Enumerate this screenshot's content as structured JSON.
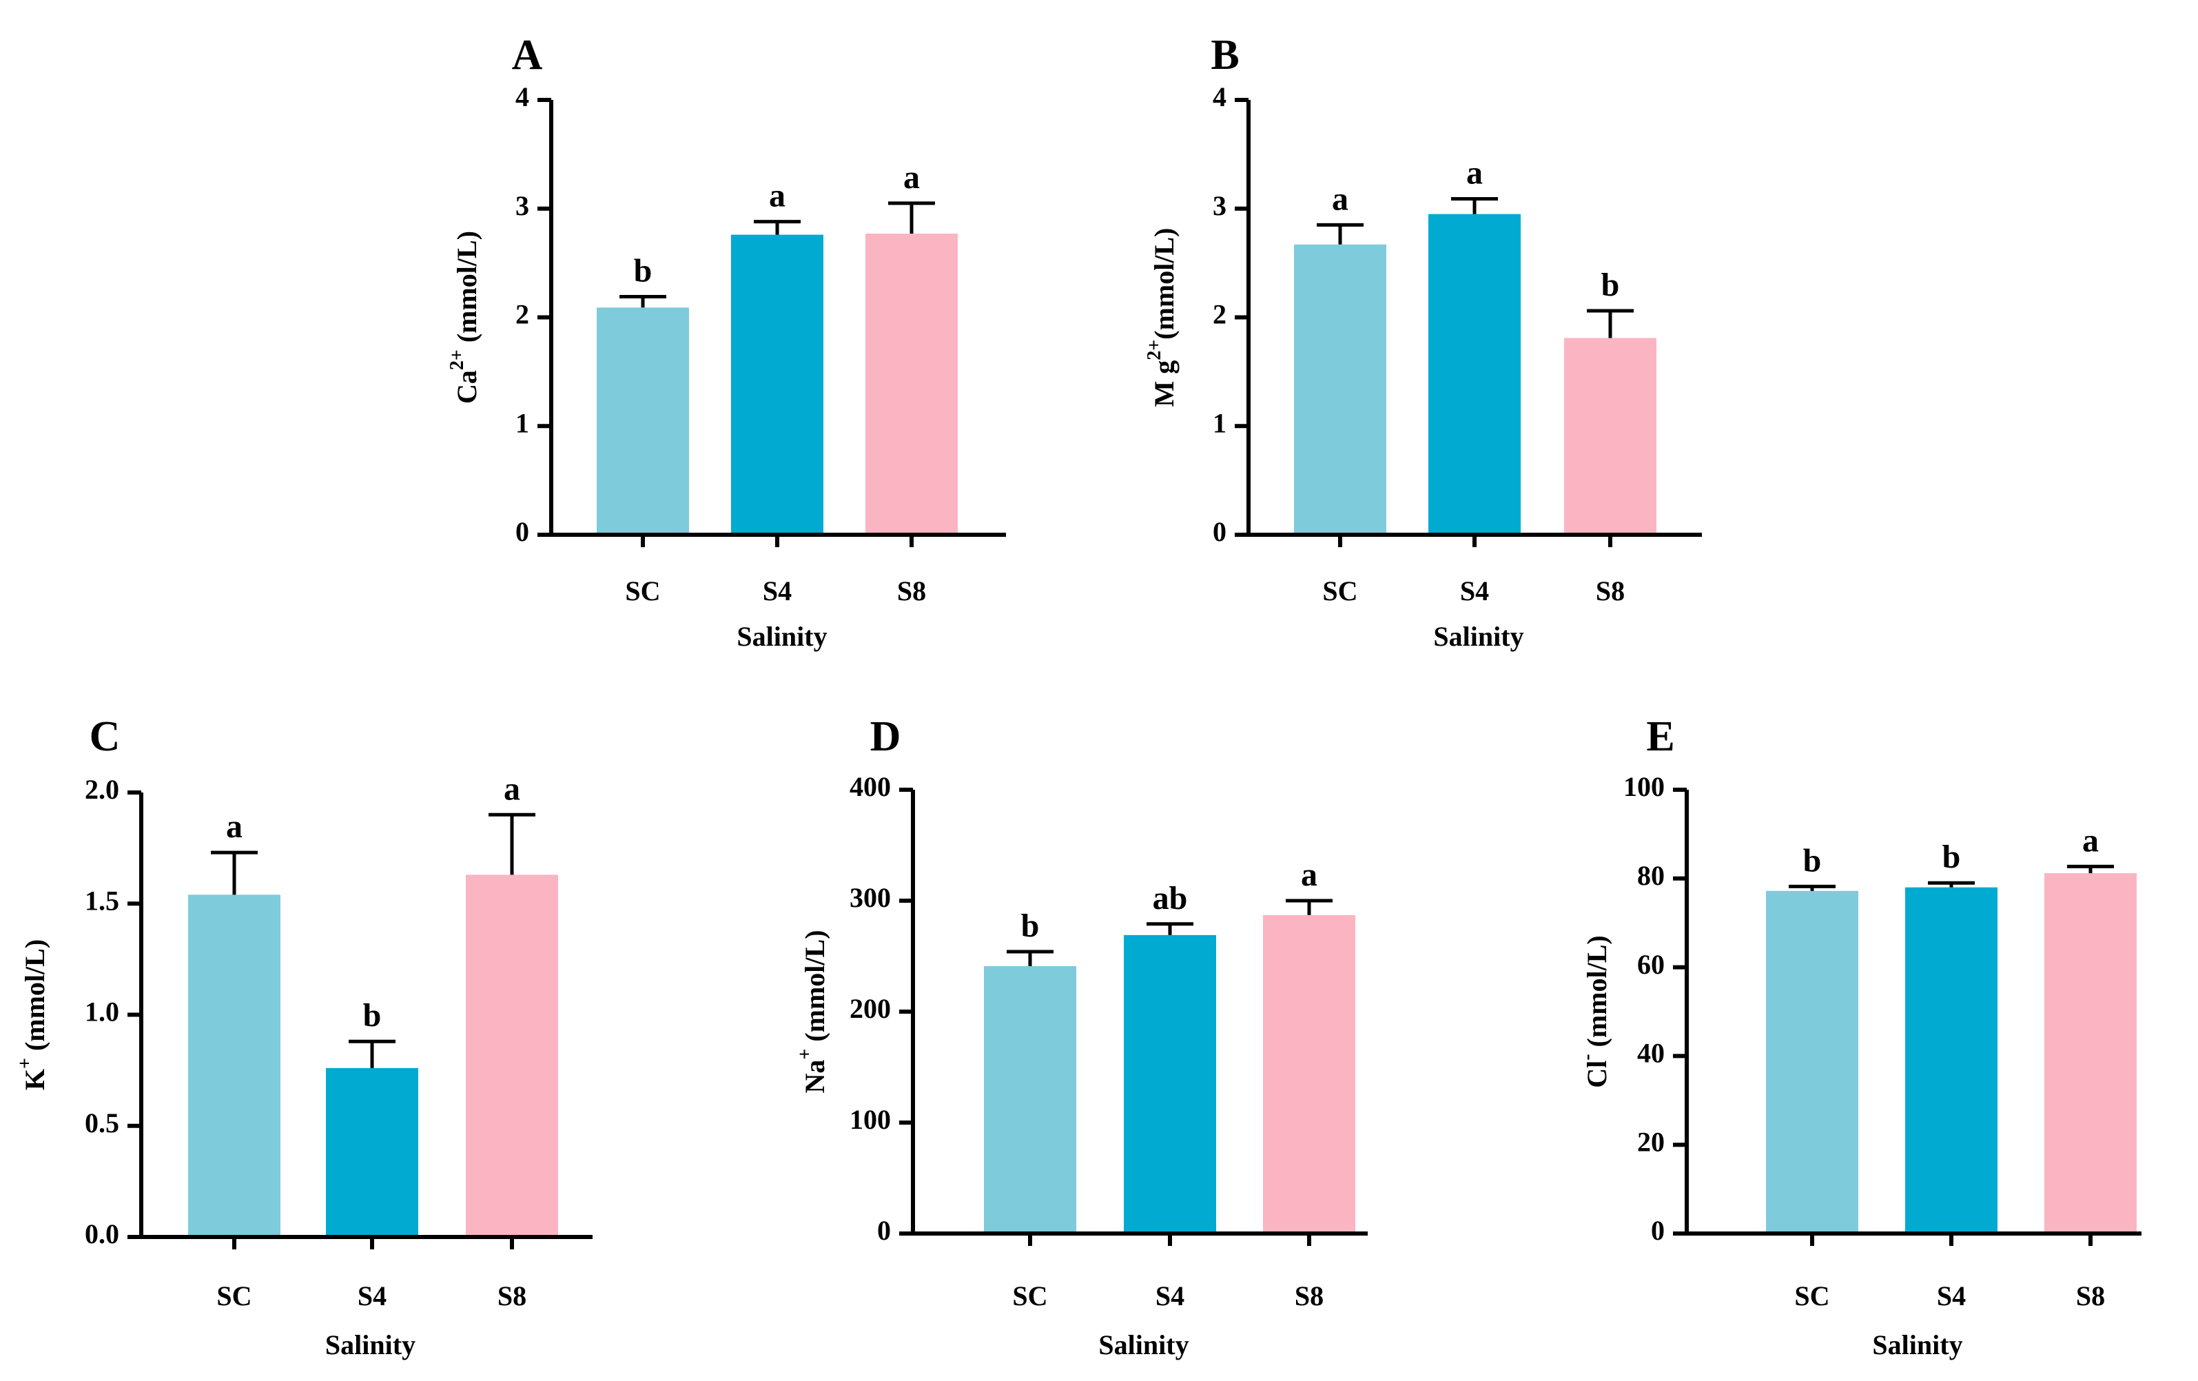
{
  "chart_data": [
    {
      "type": "bar",
      "panel": "A",
      "categories": [
        "SC",
        "S4",
        "S8"
      ],
      "values": [
        2.09,
        2.76,
        2.77
      ],
      "errors": [
        0.1,
        0.12,
        0.28
      ],
      "significance": [
        "b",
        "a",
        "a"
      ],
      "colors": [
        "#7ecbdc",
        "#00aad0",
        "#fbb5c2"
      ],
      "xlabel": "Salinity",
      "ylabel": {
        "base": "Ca",
        "sup": "2+",
        "unit": " (mmol/L)"
      },
      "ylim": [
        0,
        4
      ],
      "yticks": [
        0,
        1,
        2,
        3,
        4
      ],
      "ytick_labels": [
        "0",
        "1",
        "2",
        "3",
        "4"
      ]
    },
    {
      "type": "bar",
      "panel": "B",
      "categories": [
        "SC",
        "S4",
        "S8"
      ],
      "values": [
        2.67,
        2.95,
        1.81
      ],
      "errors": [
        0.18,
        0.14,
        0.25
      ],
      "significance": [
        "a",
        "a",
        "b"
      ],
      "colors": [
        "#7ecbdc",
        "#00aad0",
        "#fbb5c2"
      ],
      "xlabel": "Salinity",
      "ylabel": {
        "base": "M g",
        "sup": "2+",
        "unit": "(mmol/L)"
      },
      "ylim": [
        0,
        4
      ],
      "yticks": [
        0,
        1,
        2,
        3,
        4
      ],
      "ytick_labels": [
        "0",
        "1",
        "2",
        "3",
        "4"
      ]
    },
    {
      "type": "bar",
      "panel": "C",
      "categories": [
        "SC",
        "S4",
        "S8"
      ],
      "values": [
        1.54,
        0.76,
        1.63
      ],
      "errors": [
        0.19,
        0.12,
        0.27
      ],
      "significance": [
        "a",
        "b",
        "a"
      ],
      "colors": [
        "#7ecbdc",
        "#00aad0",
        "#fbb5c2"
      ],
      "xlabel": "Salinity",
      "ylabel": {
        "base": "K",
        "sup": "+",
        "unit": " (mmol/L)"
      },
      "ylim": [
        0,
        2
      ],
      "yticks": [
        0,
        0.5,
        1,
        1.5,
        2
      ],
      "ytick_labels": [
        "0.0",
        "0.5",
        "1.0",
        "1.5",
        "2.0"
      ]
    },
    {
      "type": "bar",
      "panel": "D",
      "categories": [
        "SC",
        "S4",
        "S8"
      ],
      "values": [
        241,
        269,
        287
      ],
      "errors": [
        13,
        10,
        13
      ],
      "significance": [
        "b",
        "ab",
        "a"
      ],
      "colors": [
        "#7ecbdc",
        "#00aad0",
        "#fbb5c2"
      ],
      "xlabel": "Salinity",
      "ylabel": {
        "base": "Na",
        "sup": "+",
        "unit": " (mmol/L)"
      },
      "ylim": [
        0,
        400
      ],
      "yticks": [
        0,
        100,
        200,
        300,
        400
      ],
      "ytick_labels": [
        "0",
        "100",
        "200",
        "300",
        "400"
      ]
    },
    {
      "type": "bar",
      "panel": "E",
      "categories": [
        "SC",
        "S4",
        "S8"
      ],
      "values": [
        77.2,
        78.0,
        81.2
      ],
      "errors": [
        1.0,
        1.0,
        1.5
      ],
      "significance": [
        "b",
        "b",
        "a"
      ],
      "colors": [
        "#7ecbdc",
        "#00aad0",
        "#fbb5c2"
      ],
      "xlabel": "Salinity",
      "ylabel": {
        "base": "Cl",
        "sup": "-",
        "unit": " (mmol/L)"
      },
      "ylim": [
        0,
        100
      ],
      "yticks": [
        0,
        20,
        40,
        60,
        80,
        100
      ],
      "ytick_labels": [
        "0",
        "20",
        "40",
        "60",
        "80",
        "100"
      ]
    }
  ]
}
